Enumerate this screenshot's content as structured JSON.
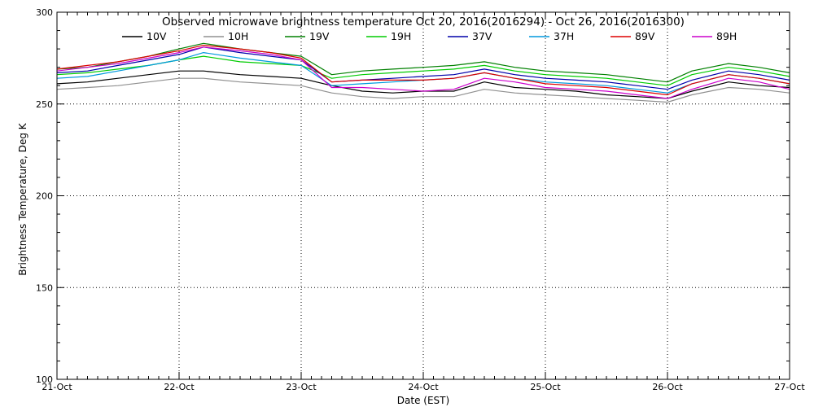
{
  "chart_data": {
    "type": "line",
    "title": "Observed microwave brightness temperature Oct 20, 2016(2016294) - Oct 26, 2016(2016300)",
    "xlabel": "Date (EST)",
    "ylabel": "Brightness Temperature, Deg K",
    "ylim": [
      100,
      300
    ],
    "yticks": [
      100,
      150,
      200,
      250,
      300
    ],
    "xlim": [
      0,
      6
    ],
    "x_tick_labels": [
      "21-Oct",
      "22-Oct",
      "23-Oct",
      "24-Oct",
      "25-Oct",
      "26-Oct",
      "27-Oct"
    ],
    "grid": true,
    "legend_position": "top",
    "x_unit": "days since 21-Oct",
    "x": [
      0,
      0.25,
      0.5,
      0.75,
      1,
      1.2,
      1.5,
      1.75,
      2,
      2.25,
      2.5,
      2.75,
      3,
      3.25,
      3.5,
      3.75,
      4,
      4.25,
      4.5,
      4.75,
      5,
      5.2,
      5.5,
      5.75,
      6
    ],
    "series": [
      {
        "name": "10V",
        "color": "#000000",
        "values": [
          261,
          262,
          264,
          266,
          268,
          268,
          266,
          265,
          264,
          260,
          257,
          256,
          257,
          257,
          262,
          259,
          258,
          257,
          255,
          254,
          253,
          257,
          262,
          260,
          259
        ]
      },
      {
        "name": "10H",
        "color": "#909090",
        "values": [
          258,
          259,
          260,
          262,
          264,
          264,
          262,
          261,
          260,
          256,
          254,
          253,
          254,
          254,
          258,
          256,
          255,
          254,
          253,
          252,
          251,
          255,
          259,
          258,
          256
        ]
      },
      {
        "name": "19V",
        "color": "#008000",
        "values": [
          269,
          270,
          273,
          276,
          280,
          283,
          280,
          278,
          276,
          266,
          268,
          269,
          270,
          271,
          273,
          270,
          268,
          267,
          266,
          264,
          262,
          268,
          272,
          270,
          267
        ]
      },
      {
        "name": "19H",
        "color": "#00cc00",
        "values": [
          266,
          267,
          269,
          271,
          274,
          276,
          273,
          272,
          271,
          264,
          266,
          267,
          268,
          269,
          271,
          268,
          266,
          265,
          264,
          262,
          260,
          266,
          270,
          268,
          265
        ]
      },
      {
        "name": "37V",
        "color": "#0000aa",
        "values": [
          267,
          268,
          271,
          274,
          277,
          281,
          278,
          276,
          274,
          262,
          263,
          264,
          265,
          266,
          269,
          266,
          264,
          263,
          262,
          260,
          258,
          263,
          268,
          266,
          263
        ]
      },
      {
        "name": "37H",
        "color": "#0099dd",
        "values": [
          264,
          265,
          268,
          271,
          274,
          278,
          275,
          273,
          271,
          260,
          261,
          262,
          263,
          264,
          267,
          264,
          262,
          261,
          260,
          258,
          256,
          261,
          266,
          264,
          261
        ]
      },
      {
        "name": "89V",
        "color": "#dd0000",
        "values": [
          269,
          271,
          273,
          276,
          279,
          282,
          280,
          278,
          275,
          262,
          263,
          263,
          263,
          264,
          267,
          264,
          261,
          260,
          259,
          257,
          255,
          261,
          266,
          264,
          261
        ]
      },
      {
        "name": "89H",
        "color": "#cc00cc",
        "values": [
          268,
          270,
          272,
          275,
          278,
          281,
          279,
          277,
          274,
          259,
          259,
          258,
          257,
          258,
          264,
          262,
          259,
          258,
          257,
          255,
          253,
          258,
          264,
          262,
          258
        ]
      }
    ]
  }
}
